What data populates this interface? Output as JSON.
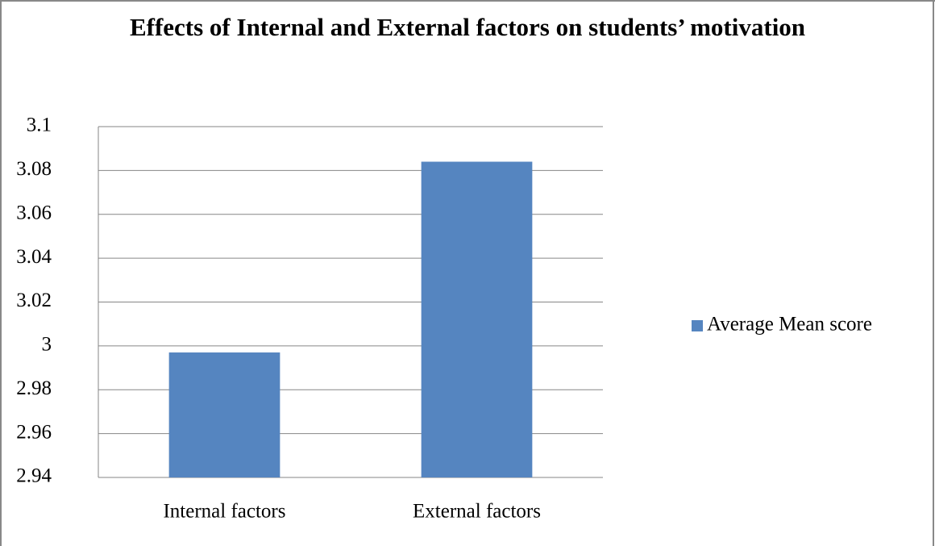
{
  "chart_data": {
    "type": "bar",
    "title": "Effects of Internal and External factors on students’ motivation",
    "categories": [
      "Internal factors",
      "External factors"
    ],
    "series": [
      {
        "name": "Average Mean score",
        "color": "#5585c0",
        "values": [
          2.997,
          3.084
        ]
      }
    ],
    "ylim": [
      2.94,
      3.1
    ],
    "yticks": [
      2.94,
      2.96,
      2.98,
      3,
      3.02,
      3.04,
      3.06,
      3.08,
      3.1
    ],
    "grid": true,
    "legend": "right"
  }
}
